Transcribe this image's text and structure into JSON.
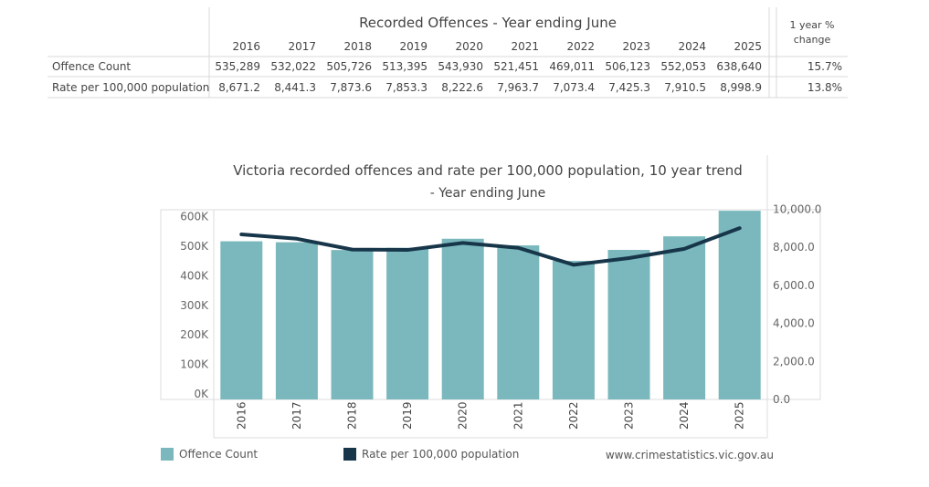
{
  "table": {
    "title": "Recorded Offences - Year ending June",
    "change_header_line1": "1 year %",
    "change_header_line2": "change",
    "years": [
      "2016",
      "2017",
      "2018",
      "2019",
      "2020",
      "2021",
      "2022",
      "2023",
      "2024",
      "2025"
    ],
    "rows": [
      {
        "label": "Offence Count",
        "values": [
          "535,289",
          "532,022",
          "505,726",
          "513,395",
          "543,930",
          "521,451",
          "469,011",
          "506,123",
          "552,053",
          "638,640"
        ],
        "change": "15.7%"
      },
      {
        "label": "Rate per 100,000 population",
        "values": [
          "8,671.2",
          "8,441.3",
          "7,873.6",
          "7,853.3",
          "8,222.6",
          "7,963.7",
          "7,073.4",
          "7,425.3",
          "7,910.5",
          "8,998.9"
        ],
        "change": "13.8%"
      }
    ]
  },
  "chart_data": {
    "type": "bar",
    "title": "Victoria recorded offences and rate per 100,000 population, 10 year trend",
    "subtitle": "- Year ending June",
    "categories": [
      "2016",
      "2017",
      "2018",
      "2019",
      "2020",
      "2021",
      "2022",
      "2023",
      "2024",
      "2025"
    ],
    "series": [
      {
        "name": "Offence Count",
        "type": "bar",
        "axis": "left",
        "color": "#7ab8bd",
        "values": [
          535289,
          532022,
          505726,
          513395,
          543930,
          521451,
          469011,
          506123,
          552053,
          638640
        ]
      },
      {
        "name": "Rate per 100,000 population",
        "type": "line",
        "axis": "right",
        "color": "#17364a",
        "values": [
          8671.2,
          8441.3,
          7873.6,
          7853.3,
          8222.6,
          7963.7,
          7073.4,
          7425.3,
          7910.5,
          8998.9
        ]
      }
    ],
    "y_left": {
      "ticks": [
        0,
        100000,
        200000,
        300000,
        400000,
        500000,
        600000
      ],
      "tick_labels": [
        "0K",
        "100K",
        "200K",
        "300K",
        "400K",
        "500K",
        "600K"
      ]
    },
    "y_right": {
      "ticks": [
        0,
        2000,
        4000,
        6000,
        8000,
        10000
      ],
      "tick_labels": [
        "0.0",
        "2,000.0",
        "4,000.0",
        "6,000.0",
        "8,000.0",
        "10,000.0"
      ]
    },
    "legend": [
      {
        "label": "Offence Count",
        "color": "#7ab8bd"
      },
      {
        "label": "Rate per 100,000 population",
        "color": "#17364a"
      }
    ],
    "source": "www.crimestatistics.vic.gov.au"
  }
}
